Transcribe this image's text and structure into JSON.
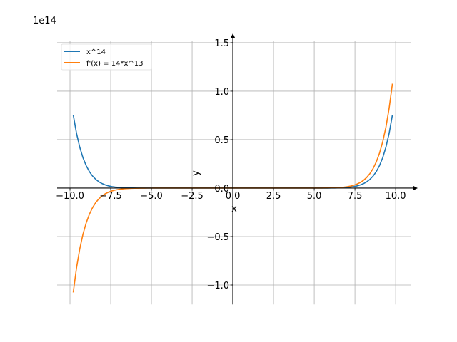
{
  "chart_data": {
    "type": "line",
    "title": "",
    "xlabel": "x",
    "ylabel": "y",
    "offset_label": "1e14",
    "scale": 100000000000000.0,
    "xlim": [
      -10.79,
      10.96
    ],
    "ylim": [
      -1.2,
      1.517
    ],
    "grid": true,
    "legend_position": "top-left",
    "x_range": [
      -9.8,
      9.8
    ],
    "xticks": [
      -10.0,
      -7.5,
      -5.0,
      -2.5,
      0.0,
      2.5,
      5.0,
      7.5,
      10.0
    ],
    "xtick_labels": [
      "−10.0",
      "−7.5",
      "−5.0",
      "−2.5",
      "0.0",
      "2.5",
      "5.0",
      "7.5",
      "10.0"
    ],
    "yticks": [
      -1.0,
      -0.5,
      0.0,
      0.5,
      1.0,
      1.5
    ],
    "ytick_labels": [
      "−1.0",
      "−0.5",
      "0.0",
      "0.5",
      "1.0",
      "1.5"
    ],
    "series": [
      {
        "name": "x^14",
        "expr": "x^14",
        "color": "#1f77b4"
      },
      {
        "name": "f'(x) = 14*x^13",
        "expr": "14*x^13",
        "color": "#ff7f0e"
      }
    ]
  }
}
